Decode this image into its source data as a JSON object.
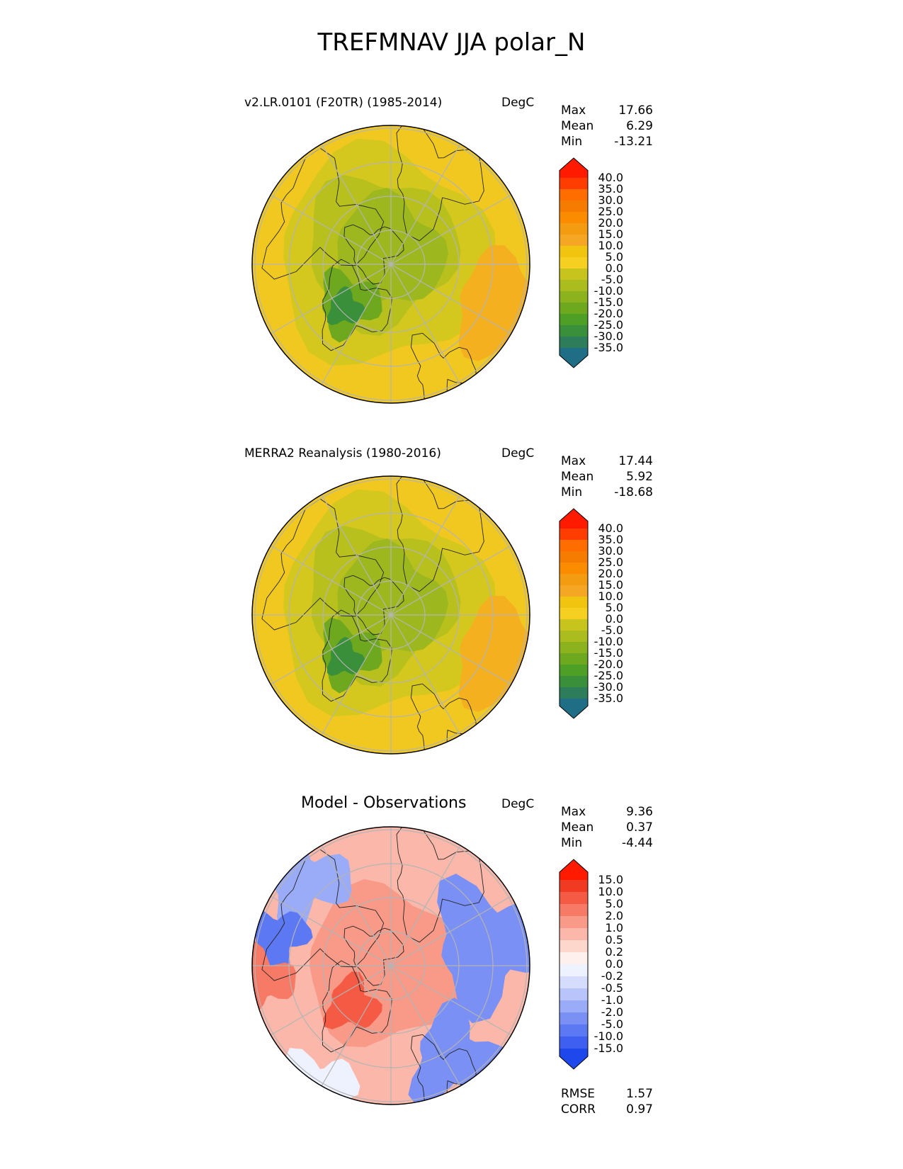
{
  "title": "TREFMNAV JJA polar_N",
  "colors": {
    "warm": [
      "#f5d020",
      "#f1c40f",
      "#f5a623",
      "#f39c12",
      "#fb8c00",
      "#f57c00",
      "#ff6d00",
      "#ff3d00",
      "#ff1a00"
    ],
    "cool": [
      "#c8c41e",
      "#aabc1e",
      "#8cb31e",
      "#6ea81e",
      "#4e9f26",
      "#3a8f3a",
      "#2e7d5a",
      "#1f6e86",
      "#1a5fb0",
      "#1a4fe0",
      "#0d3bff"
    ],
    "diff": [
      "#ff1a00",
      "#f03a22",
      "#f45a44",
      "#f77a66",
      "#f99a88",
      "#fbb8aa",
      "#fdd6cc",
      "#fef0ec",
      "#eef1fe",
      "#d6ddfc",
      "#b8c4fa",
      "#9aabf8",
      "#7a90f5",
      "#5c78f3",
      "#3e5ff0",
      "#1f48ec",
      "#0d3bff"
    ]
  },
  "chart_data": [
    {
      "type": "heatmap",
      "projection": "polar_N",
      "title": "v2.LR.0101 (F20TR) (1985-2014)",
      "units": "DegC",
      "stats": [
        {
          "label": "Max",
          "value": "17.66"
        },
        {
          "label": "Mean",
          "value": "6.29"
        },
        {
          "label": "Min",
          "value": "-13.21"
        }
      ],
      "colorbar": {
        "kind": "abs",
        "levels": [
          "40.0",
          "35.0",
          "30.0",
          "25.0",
          "20.0",
          "15.0",
          "10.0",
          "5.0",
          "0.0",
          "-5.0",
          "-10.0",
          "-15.0",
          "-20.0",
          "-25.0",
          "-30.0",
          "-35.0"
        ]
      },
      "footer": []
    },
    {
      "type": "heatmap",
      "projection": "polar_N",
      "title": "MERRA2 Reanalysis (1980-2016)",
      "units": "DegC",
      "stats": [
        {
          "label": "Max",
          "value": "17.44"
        },
        {
          "label": "Mean",
          "value": "5.92"
        },
        {
          "label": "Min",
          "value": "-18.68"
        }
      ],
      "colorbar": {
        "kind": "abs",
        "levels": [
          "40.0",
          "35.0",
          "30.0",
          "25.0",
          "20.0",
          "15.0",
          "10.0",
          "5.0",
          "0.0",
          "-5.0",
          "-10.0",
          "-15.0",
          "-20.0",
          "-25.0",
          "-30.0",
          "-35.0"
        ]
      },
      "footer": []
    },
    {
      "type": "heatmap",
      "projection": "polar_N",
      "title": "Model - Observations",
      "units": "DegC",
      "stats": [
        {
          "label": "Max",
          "value": "9.36"
        },
        {
          "label": "Mean",
          "value": "0.37"
        },
        {
          "label": "Min",
          "value": "-4.44"
        }
      ],
      "colorbar": {
        "kind": "diff",
        "levels": [
          "15.0",
          "10.0",
          "5.0",
          "2.0",
          "1.0",
          "0.5",
          "0.2",
          "0.0",
          "-0.2",
          "-0.5",
          "-1.0",
          "-2.0",
          "-5.0",
          "-10.0",
          "-15.0"
        ]
      },
      "footer": [
        {
          "label": "RMSE",
          "value": "1.57"
        },
        {
          "label": "CORR",
          "value": "0.97"
        }
      ]
    }
  ]
}
